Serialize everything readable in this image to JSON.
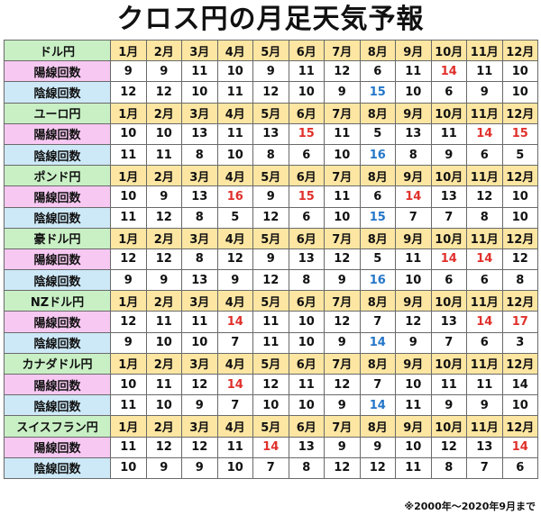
{
  "title": "クロス円の月足天気予報",
  "months": [
    "1月",
    "2月",
    "3月",
    "4月",
    "5月",
    "6月",
    "7月",
    "8月",
    "9月",
    "10月",
    "11月",
    "12月"
  ],
  "labels": {
    "positive": "陽線回数",
    "negative": "陰線回数"
  },
  "colors": {
    "high_positive": "#e0302b",
    "high_negative": "#2476c8"
  },
  "pairs": [
    {
      "name": "ドル円",
      "positive": [
        9,
        9,
        11,
        10,
        9,
        11,
        12,
        6,
        11,
        14,
        11,
        10
      ],
      "negative": [
        12,
        12,
        10,
        11,
        12,
        10,
        9,
        15,
        10,
        6,
        9,
        10
      ],
      "pos_highlight": [
        9
      ],
      "neg_highlight": [
        7
      ]
    },
    {
      "name": "ユーロ円",
      "positive": [
        10,
        10,
        13,
        11,
        13,
        15,
        11,
        5,
        13,
        11,
        14,
        15
      ],
      "negative": [
        11,
        11,
        8,
        10,
        8,
        6,
        10,
        16,
        8,
        9,
        6,
        5
      ],
      "pos_highlight": [
        5,
        10,
        11
      ],
      "neg_highlight": [
        7
      ]
    },
    {
      "name": "ポンド円",
      "positive": [
        10,
        9,
        13,
        16,
        9,
        15,
        11,
        6,
        14,
        13,
        12,
        10
      ],
      "negative": [
        11,
        12,
        8,
        5,
        12,
        6,
        10,
        15,
        7,
        7,
        8,
        10
      ],
      "pos_highlight": [
        3,
        5,
        8
      ],
      "neg_highlight": [
        7
      ]
    },
    {
      "name": "豪ドル円",
      "positive": [
        12,
        12,
        8,
        12,
        9,
        13,
        12,
        5,
        11,
        14,
        14,
        12
      ],
      "negative": [
        9,
        9,
        13,
        9,
        12,
        8,
        9,
        16,
        10,
        6,
        6,
        8
      ],
      "pos_highlight": [
        9,
        10
      ],
      "neg_highlight": [
        7
      ]
    },
    {
      "name": "NZドル円",
      "positive": [
        12,
        11,
        11,
        14,
        11,
        10,
        12,
        7,
        12,
        13,
        14,
        17
      ],
      "negative": [
        9,
        10,
        10,
        7,
        11,
        10,
        9,
        14,
        9,
        7,
        6,
        3
      ],
      "pos_highlight": [
        3,
        10,
        11
      ],
      "neg_highlight": [
        7
      ]
    },
    {
      "name": "カナダドル円",
      "positive": [
        10,
        11,
        12,
        14,
        12,
        11,
        12,
        7,
        10,
        11,
        11,
        14
      ],
      "negative": [
        11,
        10,
        9,
        7,
        10,
        10,
        9,
        14,
        11,
        9,
        9,
        10
      ],
      "pos_highlight": [
        3
      ],
      "neg_highlight": [
        7
      ]
    },
    {
      "name": "スイスフラン円",
      "positive": [
        11,
        12,
        12,
        11,
        14,
        13,
        9,
        9,
        10,
        12,
        13,
        14
      ],
      "negative": [
        10,
        9,
        9,
        10,
        7,
        8,
        12,
        12,
        11,
        8,
        7,
        6
      ],
      "pos_highlight": [
        4,
        11
      ],
      "neg_highlight": []
    }
  ],
  "footnote": "※2000年～2020年9月まで"
}
